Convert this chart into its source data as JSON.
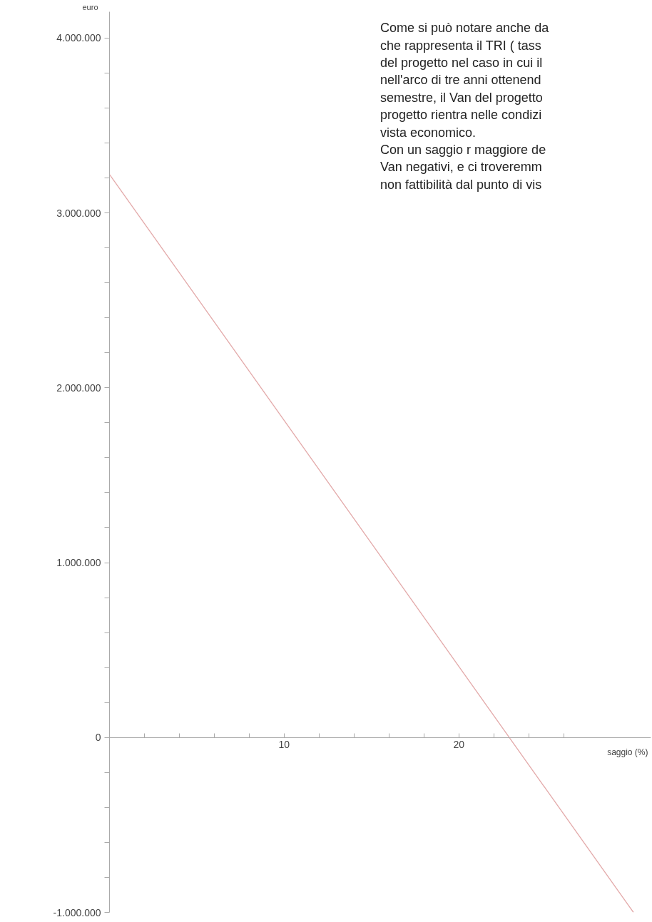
{
  "chart_data": {
    "type": "line",
    "xlabel": "saggio (%)",
    "ylabel": "euro",
    "annotations": [
      "Come si può notare anche da\nche rappresenta il TRI ( tass\ndel progetto nel caso in cui il\nnell'arco di tre anni ottenend\nsemestre, il Van del progetto\nprogetto rientra nelle condizi\nvista economico.\nCon un saggio r maggiore de\nVan negativi, e ci troveremm\nnon fattibilità dal punto di vis"
    ],
    "x": [
      0,
      30
    ],
    "series": [
      {
        "color": "#e3a9a9",
        "values": [
          3220000,
          -1000000
        ]
      }
    ],
    "xlim": [
      0,
      31
    ],
    "ylim": [
      -1000000,
      4150000
    ],
    "xticks": [
      {
        "value": 2,
        "label": null
      },
      {
        "value": 4,
        "label": null
      },
      {
        "value": 6,
        "label": null
      },
      {
        "value": 8,
        "label": null
      },
      10,
      {
        "value": 12,
        "label": null
      },
      {
        "value": 14,
        "label": null
      },
      {
        "value": 16,
        "label": null
      },
      {
        "value": 18,
        "label": null
      },
      20,
      {
        "value": 22,
        "label": null
      },
      {
        "value": 24,
        "label": null
      },
      {
        "value": 26,
        "label": null
      }
    ],
    "yticks": [
      {
        "value": -1000000,
        "label": "-1.000.000"
      },
      {
        "value": -800000,
        "label": null
      },
      {
        "value": -600000,
        "label": null
      },
      {
        "value": -400000,
        "label": null
      },
      {
        "value": -200000,
        "label": null
      },
      0,
      {
        "value": 200000,
        "label": null
      },
      {
        "value": 400000,
        "label": null
      },
      {
        "value": 600000,
        "label": null
      },
      {
        "value": 800000,
        "label": null
      },
      {
        "value": 1000000,
        "label": "1.000.000"
      },
      {
        "value": 1200000,
        "label": null
      },
      {
        "value": 1400000,
        "label": null
      },
      {
        "value": 1600000,
        "label": null
      },
      {
        "value": 1800000,
        "label": null
      },
      {
        "value": 2000000,
        "label": "2.000.000"
      },
      {
        "value": 2200000,
        "label": null
      },
      {
        "value": 2400000,
        "label": null
      },
      {
        "value": 2600000,
        "label": null
      },
      {
        "value": 2800000,
        "label": null
      },
      {
        "value": 3000000,
        "label": "3.000.000"
      },
      {
        "value": 3200000,
        "label": null
      },
      {
        "value": 3400000,
        "label": null
      },
      {
        "value": 3600000,
        "label": null
      },
      {
        "value": 3800000,
        "label": null
      },
      {
        "value": 4000000,
        "label": "4.000.000"
      }
    ],
    "line_style": "solid"
  }
}
